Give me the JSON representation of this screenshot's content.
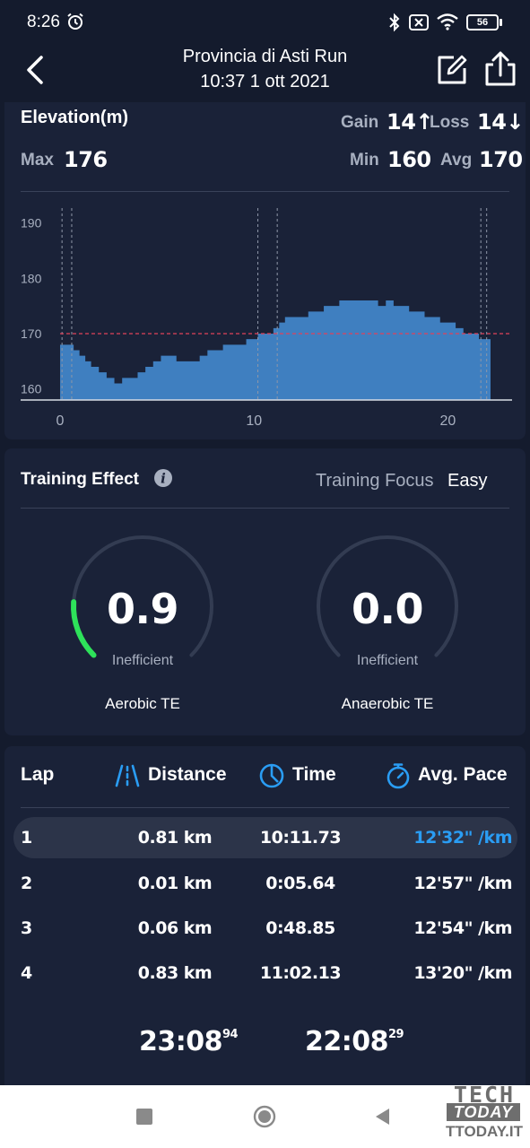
{
  "status_bar": {
    "time": "8:26",
    "battery": "56",
    "icons": [
      "alarm-icon",
      "bluetooth-icon",
      "mute-icon",
      "wifi-icon",
      "battery-icon"
    ]
  },
  "header": {
    "title": "Provincia di Asti Run",
    "subtitle": "10:37 1 ott 2021",
    "icons": [
      "back-arrow-icon",
      "edit-icon",
      "share-icon"
    ]
  },
  "elevation": {
    "title": "Elevation(m)",
    "gain_label": "Gain",
    "gain_value": "14↑",
    "loss_label": "Loss",
    "loss_value": "14↓",
    "max_label": "Max",
    "max_value": "176",
    "min_label": "Min",
    "min_value": "160",
    "avg_label": "Avg",
    "avg_value": "170"
  },
  "chart_data": {
    "type": "area",
    "title": "Elevation(m)",
    "xlabel": "",
    "ylabel": "",
    "xlim": [
      0,
      22.2
    ],
    "ylim": [
      158,
      194
    ],
    "x_ticks": [
      0,
      10,
      20
    ],
    "y_ticks": [
      160,
      170,
      180,
      190
    ],
    "avg_line": 170,
    "fill_color": "#3f7fc0",
    "avg_line_color": "#e0425a",
    "x": [
      0,
      0.6,
      0.7,
      1.0,
      1.3,
      1.6,
      2.0,
      2.4,
      2.8,
      3.0,
      3.2,
      3.6,
      4.0,
      4.4,
      4.8,
      5.2,
      5.6,
      6.0,
      6.4,
      6.8,
      7.2,
      7.6,
      8.0,
      8.4,
      8.8,
      9.2,
      9.6,
      10.0,
      10.2,
      10.6,
      11.0,
      11.3,
      11.6,
      12.0,
      12.4,
      12.8,
      13.2,
      13.6,
      14.0,
      14.4,
      14.8,
      15.2,
      15.6,
      16.0,
      16.4,
      16.8,
      17.2,
      17.6,
      18.0,
      18.4,
      18.8,
      19.2,
      19.6,
      20.0,
      20.4,
      20.8,
      21.2,
      21.6,
      22.2
    ],
    "y": [
      168,
      168,
      167,
      166,
      165,
      164,
      163,
      162,
      161,
      161,
      162,
      162,
      163,
      164,
      165,
      166,
      166,
      165,
      165,
      165,
      166,
      167,
      167,
      168,
      168,
      168,
      169,
      169,
      170,
      170,
      171,
      172,
      173,
      173,
      173,
      174,
      174,
      175,
      175,
      176,
      176,
      176,
      176,
      176,
      175,
      176,
      175,
      175,
      174,
      174,
      173,
      173,
      172,
      172,
      171,
      170,
      170,
      169,
      168
    ],
    "marker_lines_x": [
      0.1,
      0.6,
      10.2,
      11.2,
      21.7,
      22.0
    ]
  },
  "training": {
    "title": "Training Effect",
    "focus_label": "Training Focus",
    "focus_value": "Easy",
    "aerobic": {
      "value": "0.9",
      "fraction": 0.18,
      "status": "Inefficient",
      "label": "Aerobic TE",
      "color": "#2ee25a"
    },
    "anaerobic": {
      "value": "0.0",
      "fraction": 0.0,
      "status": "Inefficient",
      "label": "Anaerobic TE",
      "color": "#2ee25a"
    }
  },
  "laps": {
    "headers": {
      "lap": "Lap",
      "distance": "Distance",
      "time": "Time",
      "pace": "Avg. Pace"
    },
    "rows": [
      {
        "lap": "1",
        "distance": "0.81 km",
        "time": "10:11.73",
        "pace": "12'32\" /km",
        "highlight": true
      },
      {
        "lap": "2",
        "distance": "0.01 km",
        "time": "0:05.64",
        "pace": "12'57\" /km",
        "highlight": false
      },
      {
        "lap": "3",
        "distance": "0.06 km",
        "time": "0:48.85",
        "pace": "12'54\" /km",
        "highlight": false
      },
      {
        "lap": "4",
        "distance": "0.83 km",
        "time": "11:02.13",
        "pace": "13'20\" /km",
        "highlight": false
      }
    ],
    "total_1_main": "23:08",
    "total_1_sup": "94",
    "total_2_main": "22:08",
    "total_2_sup": "29",
    "accent": "#2a9df4"
  },
  "nav_bar": {
    "icons": [
      "recents-icon",
      "home-icon",
      "back-icon"
    ]
  },
  "watermark": {
    "line1": "TECH",
    "line2": "TODAY",
    "line3": "TTODAY.IT"
  }
}
